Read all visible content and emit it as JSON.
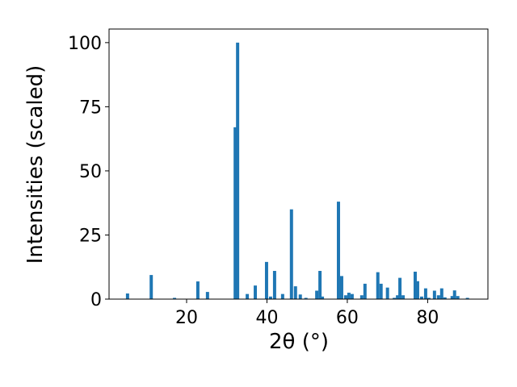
{
  "chart_data": {
    "type": "bar",
    "x_label": "2θ (°)",
    "y_label": "Intensities (scaled)",
    "color": "#1f77b4",
    "x": [
      5.3,
      11.2,
      17.0,
      22.8,
      25.2,
      32.1,
      32.7,
      35.1,
      37.1,
      39.9,
      40.9,
      41.9,
      43.9,
      46.1,
      47.1,
      48.3,
      49.7,
      52.4,
      53.2,
      53.8,
      57.8,
      58.6,
      59.6,
      60.4,
      61.2,
      63.6,
      64.4,
      67.6,
      68.4,
      70.0,
      71.7,
      72.5,
      73.1,
      73.9,
      76.9,
      77.5,
      78.5,
      79.5,
      80.3,
      81.7,
      82.7,
      83.5,
      84.3,
      86.1,
      86.7,
      87.5,
      89.9
    ],
    "values": [
      2.2,
      9.4,
      0.5,
      6.9,
      2.8,
      67,
      100,
      2,
      5.3,
      14.5,
      1,
      11,
      2,
      35,
      5,
      1.8,
      0.5,
      3.3,
      11,
      1,
      38,
      9,
      1.5,
      2.5,
      2,
      1.5,
      6,
      10.5,
      6,
      4.5,
      0.5,
      1.5,
      8.3,
      1.5,
      10.7,
      7,
      1,
      4.2,
      0.5,
      3.3,
      1.5,
      4.2,
      0.7,
      1.2,
      3.4,
      1.2,
      0.5
    ],
    "xlim": [
      0.7,
      95
    ],
    "ylim": [
      0,
      105.3
    ],
    "xticks": [
      20,
      40,
      60,
      80
    ],
    "yticks": [
      0,
      25,
      50,
      75,
      100
    ]
  }
}
